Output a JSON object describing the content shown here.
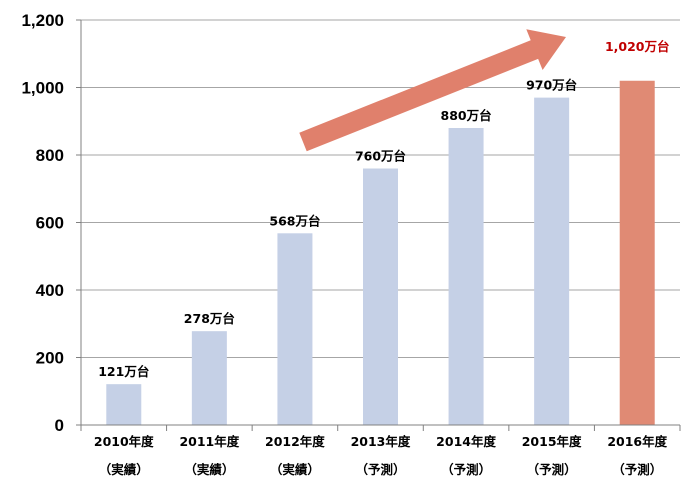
{
  "chart_data": {
    "type": "bar",
    "categories": [
      {
        "year": "2010年度",
        "note": "（実績）"
      },
      {
        "year": "2011年度",
        "note": "（実績）"
      },
      {
        "year": "2012年度",
        "note": "（実績）"
      },
      {
        "year": "2013年度",
        "note": "（予測）"
      },
      {
        "year": "2014年度",
        "note": "（予測）"
      },
      {
        "year": "2015年度",
        "note": "（予測）"
      },
      {
        "year": "2016年度",
        "note": "（予測）"
      }
    ],
    "values": [
      121,
      278,
      568,
      760,
      880,
      970,
      1020
    ],
    "data_labels": [
      "121万台",
      "278万台",
      "568万台",
      "760万台",
      "880万台",
      "970万台",
      "1,020万台"
    ],
    "highlight_index": 6,
    "y_ticks": [
      "0",
      "200",
      "400",
      "600",
      "800",
      "1,000",
      "1,200"
    ],
    "ylim": [
      0,
      1200
    ],
    "grid": true,
    "title": "",
    "xlabel": "",
    "ylabel": "",
    "trend_arrow": true,
    "colors": {
      "bar": "#c5d0e6",
      "highlight_bar": "#e08a74",
      "highlight_label": "#c00000",
      "arrow": "#e0806c",
      "grid": "#a6a6a6",
      "axis": "#808080"
    }
  }
}
